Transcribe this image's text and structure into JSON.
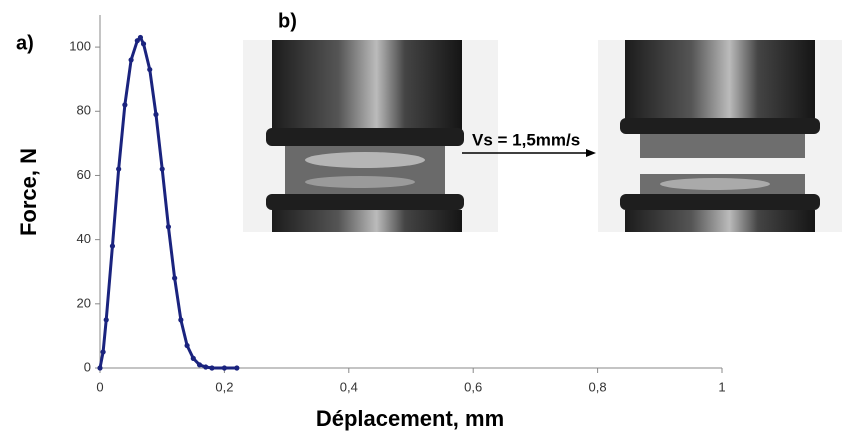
{
  "chart_data": {
    "type": "line",
    "xlabel": "Déplacement, mm",
    "ylabel": "Force, N",
    "annotations": [
      "a)",
      "b)",
      "Vs = 1,5mm/s"
    ],
    "x": [
      0,
      0.005,
      0.01,
      0.02,
      0.03,
      0.04,
      0.05,
      0.06,
      0.065,
      0.07,
      0.08,
      0.09,
      0.1,
      0.11,
      0.12,
      0.13,
      0.14,
      0.15,
      0.16,
      0.17,
      0.18,
      0.2,
      0.22
    ],
    "series": [
      {
        "color": "#1a237e",
        "values": [
          0,
          5,
          15,
          38,
          62,
          82,
          96,
          102,
          103,
          101,
          93,
          79,
          62,
          44,
          28,
          15,
          7,
          3,
          1,
          0.3,
          0,
          0,
          0
        ]
      }
    ],
    "xlim": [
      0,
      1
    ],
    "xticks": [
      0,
      {
        "value": 0.2,
        "label": "0,2"
      },
      {
        "value": 0.4,
        "label": "0,4"
      },
      {
        "value": 0.6,
        "label": "0,6"
      },
      {
        "value": 0.8,
        "label": "0,8"
      },
      1
    ],
    "ylim": [
      0,
      110
    ],
    "yticks": [
      0,
      20,
      40,
      60,
      80,
      100
    ]
  }
}
